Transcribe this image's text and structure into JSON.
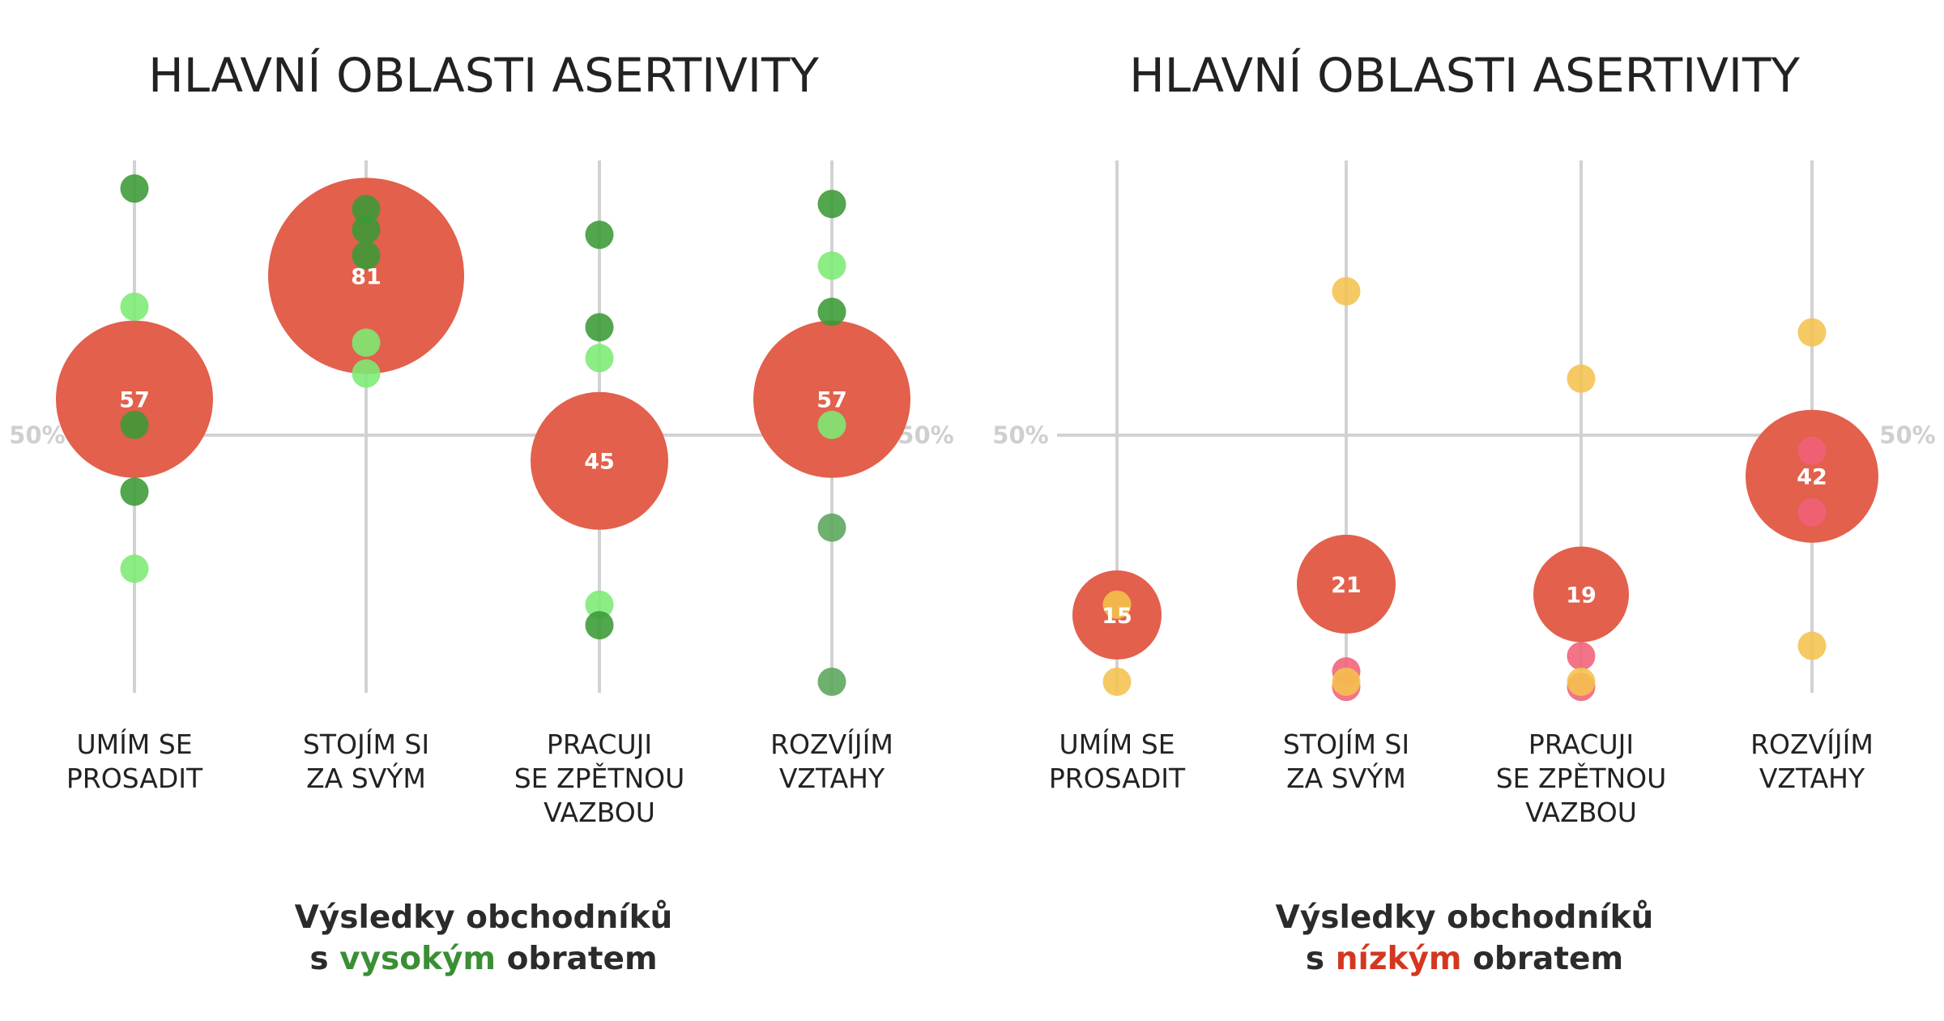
{
  "colors": {
    "big_bubble": "#e2604c",
    "dark_green": "#3a9a36",
    "light_green": "#7cea74",
    "mid_green": "#5aa55a",
    "yellow": "#f4c24d",
    "pink": "#f16079",
    "axis": "#d2d2d2",
    "accent_green": "#3a8f35",
    "accent_red": "#d4371f"
  },
  "chart_data": [
    {
      "type": "scatter",
      "title": "HLAVNÍ OBLASTI ASERTIVITY",
      "categories": [
        "UMÍM SE PROSADIT",
        "STOJÍM SI ZA SVÝM",
        "PRACUJI SE ZPĚTNOU VAZBOU",
        "ROZVÍJÍM VZTAHY"
      ],
      "category_label_lines": [
        [
          "UMÍM SE",
          "PROSADIT"
        ],
        [
          "STOJÍM SI",
          "ZA SVÝM"
        ],
        [
          "PRACUJI",
          "SE ZPĚTNOU",
          "VAZBOU"
        ],
        [
          "ROZVÍJÍM",
          "VZTAHY"
        ]
      ],
      "reference_line": {
        "value": 50,
        "labels": [
          "50%",
          "50%"
        ]
      },
      "ylim": [
        0,
        100
      ],
      "main_values": [
        57,
        81,
        45,
        57
      ],
      "points": [
        {
          "category": 0,
          "y": 98,
          "color": "dark_green"
        },
        {
          "category": 0,
          "y": 75,
          "color": "light_green"
        },
        {
          "category": 0,
          "y": 52,
          "color": "dark_green"
        },
        {
          "category": 0,
          "y": 39,
          "color": "dark_green"
        },
        {
          "category": 0,
          "y": 24,
          "color": "light_green"
        },
        {
          "category": 1,
          "y": 94,
          "color": "dark_green"
        },
        {
          "category": 1,
          "y": 90,
          "color": "dark_green"
        },
        {
          "category": 1,
          "y": 85,
          "color": "dark_green"
        },
        {
          "category": 1,
          "y": 68,
          "color": "light_green"
        },
        {
          "category": 1,
          "y": 62,
          "color": "light_green"
        },
        {
          "category": 2,
          "y": 89,
          "color": "dark_green"
        },
        {
          "category": 2,
          "y": 71,
          "color": "dark_green"
        },
        {
          "category": 2,
          "y": 65,
          "color": "light_green"
        },
        {
          "category": 2,
          "y": 17,
          "color": "light_green"
        },
        {
          "category": 2,
          "y": 13,
          "color": "dark_green"
        },
        {
          "category": 3,
          "y": 95,
          "color": "dark_green"
        },
        {
          "category": 3,
          "y": 83,
          "color": "light_green"
        },
        {
          "category": 3,
          "y": 74,
          "color": "dark_green"
        },
        {
          "category": 3,
          "y": 52,
          "color": "light_green"
        },
        {
          "category": 3,
          "y": 32,
          "color": "mid_green"
        },
        {
          "category": 3,
          "y": 2,
          "color": "mid_green"
        }
      ],
      "caption": {
        "line1": "Výsledky obchodníků",
        "line2_prefix": "s ",
        "line2_highlight": "vysokým",
        "line2_suffix": " obratem",
        "highlight_color": "accent_green"
      }
    },
    {
      "type": "scatter",
      "title": "HLAVNÍ OBLASTI ASERTIVITY",
      "categories": [
        "UMÍM SE PROSADIT",
        "STOJÍM SI ZA SVÝM",
        "PRACUJI SE ZPĚTNOU VAZBOU",
        "ROZVÍJÍM VZTAHY"
      ],
      "category_label_lines": [
        [
          "UMÍM SE",
          "PROSADIT"
        ],
        [
          "STOJÍM SI",
          "ZA SVÝM"
        ],
        [
          "PRACUJI",
          "SE ZPĚTNOU",
          "VAZBOU"
        ],
        [
          "ROZVÍJÍM",
          "VZTAHY"
        ]
      ],
      "reference_line": {
        "value": 50,
        "labels": [
          "50%",
          "50%"
        ]
      },
      "ylim": [
        0,
        100
      ],
      "main_values": [
        15,
        21,
        19,
        42
      ],
      "points": [
        {
          "category": 0,
          "y": 17,
          "color": "yellow"
        },
        {
          "category": 0,
          "y": 2,
          "color": "yellow"
        },
        {
          "category": 1,
          "y": 78,
          "color": "yellow"
        },
        {
          "category": 1,
          "y": 4,
          "color": "pink"
        },
        {
          "category": 1,
          "y": 1,
          "color": "pink"
        },
        {
          "category": 1,
          "y": 2,
          "color": "yellow"
        },
        {
          "category": 2,
          "y": 61,
          "color": "yellow"
        },
        {
          "category": 2,
          "y": 7,
          "color": "pink"
        },
        {
          "category": 2,
          "y": 1,
          "color": "pink"
        },
        {
          "category": 2,
          "y": 2,
          "color": "yellow"
        },
        {
          "category": 3,
          "y": 70,
          "color": "yellow"
        },
        {
          "category": 3,
          "y": 47,
          "color": "pink"
        },
        {
          "category": 3,
          "y": 35,
          "color": "pink"
        },
        {
          "category": 3,
          "y": 9,
          "color": "yellow"
        }
      ],
      "caption": {
        "line1": "Výsledky obchodníků",
        "line2_prefix": "s ",
        "line2_highlight": "nízkým",
        "line2_suffix": " obratem",
        "highlight_color": "accent_red"
      }
    }
  ]
}
